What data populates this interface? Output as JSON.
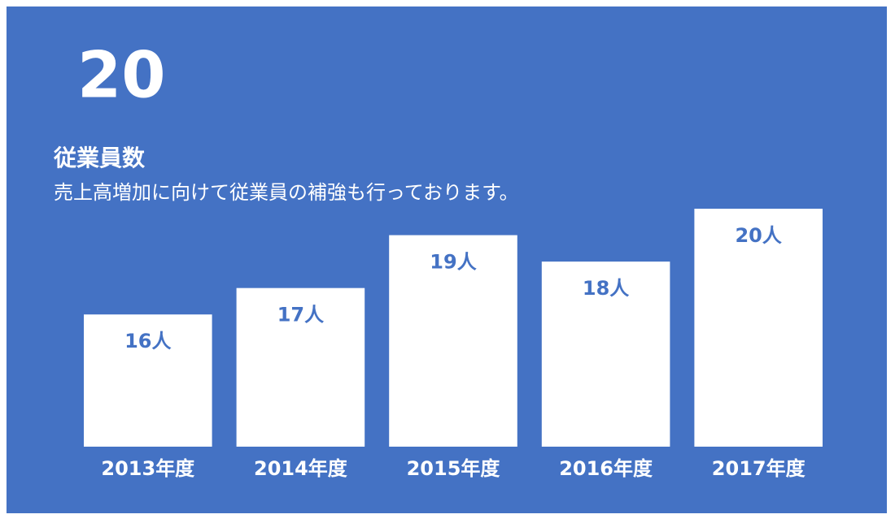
{
  "chart_data": {
    "type": "bar",
    "kpi": 20,
    "title": "従業員数",
    "subtitle": "売上高増加に向けて従業員の補強も行っております。",
    "categories": [
      "2013年度",
      "2014年度",
      "2015年度",
      "2016年度",
      "2017年度"
    ],
    "values": [
      16,
      17,
      19,
      18,
      20
    ],
    "value_labels": [
      "16人",
      "17人",
      "19人",
      "18人",
      "20人"
    ],
    "color": "#ffffff",
    "background": "#4472c4",
    "ylim": [
      11,
      20
    ]
  }
}
